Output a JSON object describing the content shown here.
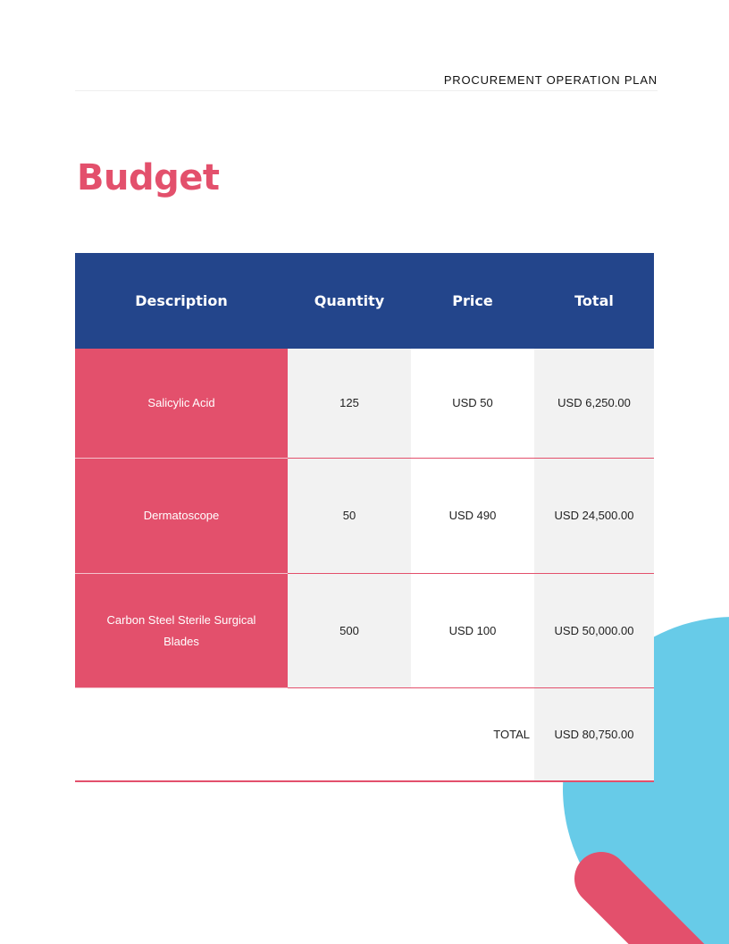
{
  "header": {
    "title": "PROCUREMENT OPERATION PLAN"
  },
  "page": {
    "title": "Budget"
  },
  "table": {
    "columns": [
      "Description",
      "Quantity",
      "Price",
      "Total"
    ],
    "rows": [
      {
        "description": "Salicylic Acid",
        "quantity": "125",
        "price": "USD 50",
        "total": "USD 6,250.00"
      },
      {
        "description": "Dermatoscope",
        "quantity": "50",
        "price": "USD 490",
        "total": "USD 24,500.00"
      },
      {
        "description": "Carbon Steel Sterile Surgical Blades",
        "quantity": "500",
        "price": "USD 100",
        "total": "USD 50,000.00"
      }
    ],
    "total_label": "TOTAL",
    "total_value": "USD 80,750.00"
  },
  "colors": {
    "accent_pink": "#e3506c",
    "header_blue": "#23458b",
    "circle_blue": "#67cbe8",
    "cell_gray": "#f2f2f2"
  },
  "decorations": [
    "blue-circle",
    "pink-rounded-bar"
  ]
}
